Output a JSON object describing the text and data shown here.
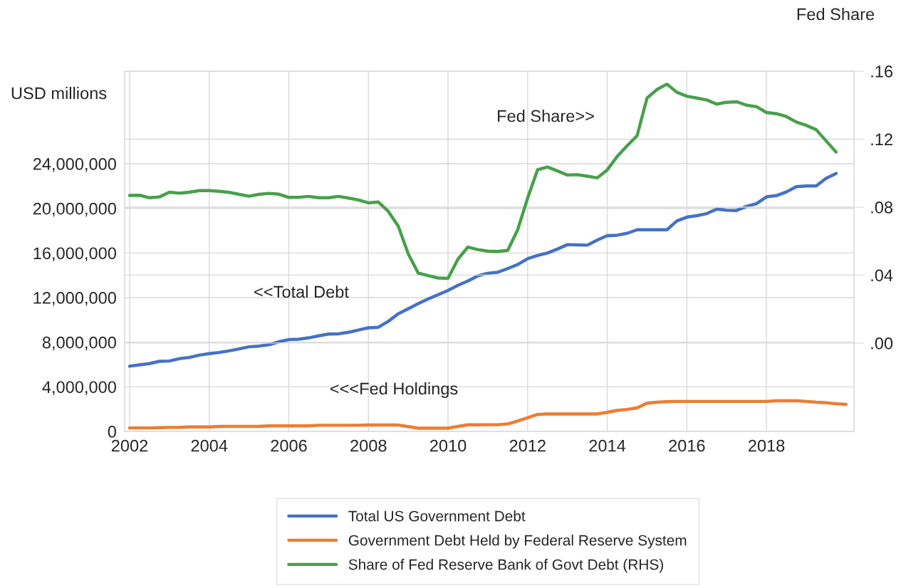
{
  "chart_data": {
    "type": "line",
    "ylabel": "USD millions",
    "y2label": "Fed Share",
    "x": [
      2002,
      2002.25,
      2002.5,
      2002.75,
      2003,
      2003.25,
      2003.5,
      2003.75,
      2004,
      2004.25,
      2004.5,
      2004.75,
      2005,
      2005.25,
      2005.5,
      2005.75,
      2006,
      2006.25,
      2006.5,
      2006.75,
      2007,
      2007.25,
      2007.5,
      2007.75,
      2008,
      2008.25,
      2008.5,
      2008.75,
      2009,
      2009.25,
      2009.5,
      2009.75,
      2010,
      2010.25,
      2010.5,
      2010.75,
      2011,
      2011.25,
      2011.5,
      2011.75,
      2012,
      2012.25,
      2012.5,
      2012.75,
      2013,
      2013.25,
      2013.5,
      2013.75,
      2014,
      2014.25,
      2014.5,
      2014.75,
      2015,
      2015.25,
      2015.5,
      2015.75,
      2016,
      2016.25,
      2016.5,
      2016.75,
      2017,
      2017.25,
      2017.5,
      2017.75,
      2018,
      2018.25,
      2018.5,
      2018.75,
      2019,
      2019.25,
      2019.5,
      2019.75,
      2020
    ],
    "series": [
      {
        "name": "Total US Government Debt",
        "color": "#4472c4",
        "values": [
          5850000,
          5970000,
          6080000,
          6290000,
          6310000,
          6520000,
          6630000,
          6840000,
          6970000,
          7080000,
          7220000,
          7400000,
          7590000,
          7650000,
          7770000,
          8040000,
          8230000,
          8270000,
          8390000,
          8570000,
          8730000,
          8750000,
          8890000,
          9090000,
          9290000,
          9340000,
          9870000,
          10550000,
          11000000,
          11460000,
          11870000,
          12260000,
          12640000,
          13100000,
          13490000,
          13950000,
          14180000,
          14270000,
          14600000,
          14960000,
          15490000,
          15770000,
          16000000,
          16350000,
          16750000,
          16730000,
          16700000,
          17150000,
          17550000,
          17590000,
          17760000,
          18080000,
          18080000,
          18080000,
          18080000,
          18870000,
          19210000,
          19340000,
          19530000,
          19930000,
          19830000,
          19810000,
          20180000,
          20420000,
          21030000,
          21140000,
          21470000,
          21940000,
          22010000,
          22010000,
          22700000,
          23130000,
          null
        ]
      },
      {
        "name": "Government Debt Held by Federal Reserve System",
        "color": "#ed7d31",
        "values": [
          310000,
          310000,
          310000,
          330000,
          360000,
          360000,
          400000,
          400000,
          400000,
          450000,
          450000,
          450000,
          450000,
          450000,
          500000,
          500000,
          500000,
          500000,
          500000,
          550000,
          550000,
          550000,
          550000,
          550000,
          580000,
          580000,
          580000,
          570000,
          430000,
          290000,
          290000,
          290000,
          290000,
          450000,
          590000,
          590000,
          600000,
          600000,
          670000,
          940000,
          1220000,
          1520000,
          1570000,
          1570000,
          1570000,
          1570000,
          1570000,
          1570000,
          1710000,
          1880000,
          1970000,
          2110000,
          2530000,
          2620000,
          2670000,
          2690000,
          2690000,
          2690000,
          2690000,
          2690000,
          2690000,
          2690000,
          2690000,
          2690000,
          2690000,
          2740000,
          2740000,
          2740000,
          2690000,
          2620000,
          2570000,
          2480000,
          2430000
        ]
      },
      {
        "name": "Share of Fed Reserve Bank of Govt Debt (RHS)",
        "color": "#47a04b",
        "axis": "y2",
        "values": [
          0.0869,
          0.087,
          0.0855,
          0.086,
          0.0888,
          0.0882,
          0.0888,
          0.0897,
          0.0897,
          0.0893,
          0.0887,
          0.0875,
          0.0864,
          0.0875,
          0.0881,
          0.0876,
          0.0857,
          0.0858,
          0.0863,
          0.0855,
          0.0855,
          0.0863,
          0.0853,
          0.0842,
          0.0825,
          0.083,
          0.0775,
          0.0688,
          0.0525,
          0.0412,
          0.0397,
          0.0383,
          0.0381,
          0.0494,
          0.0565,
          0.055,
          0.0541,
          0.0539,
          0.0545,
          0.0667,
          0.0853,
          0.102,
          0.1036,
          0.1013,
          0.0989,
          0.0991,
          0.0982,
          0.0972,
          0.1019,
          0.1098,
          0.1161,
          0.122,
          0.1442,
          0.1492,
          0.1524,
          0.1476,
          0.1453,
          0.1442,
          0.1431,
          0.1406,
          0.1417,
          0.142,
          0.14,
          0.1391,
          0.1357,
          0.135,
          0.1333,
          0.1301,
          0.1281,
          0.1256,
          0.119,
          0.1124,
          null
        ]
      }
    ],
    "xlim": [
      2001.875,
      2020.2
    ],
    "xticks": [
      2002,
      2004,
      2006,
      2008,
      2010,
      2012,
      2014,
      2016,
      2018
    ],
    "ylim": [
      0,
      32300000
    ],
    "yticks": [
      {
        "value": 0,
        "label": "0"
      },
      {
        "value": 4000000,
        "label": "4,000,000"
      },
      {
        "value": 8000000,
        "label": "8,000,000"
      },
      {
        "value": 12000000,
        "label": "12,000,000"
      },
      {
        "value": 16000000,
        "label": "16,000,000"
      },
      {
        "value": 20000000,
        "label": "20,000,000"
      },
      {
        "value": 24000000,
        "label": "24,000,000"
      }
    ],
    "y2lim": [
      -0.052,
      0.16
    ],
    "y2ticks": [
      {
        "value": 0,
        "label": ".00"
      },
      {
        "value": 0.04,
        "label": ".04"
      },
      {
        "value": 0.08,
        "label": ".08"
      },
      {
        "value": 0.12,
        "label": ".12"
      },
      {
        "value": 0.16,
        "label": ".16"
      }
    ],
    "annotations": [
      "Fed Share>>",
      "<<Total Debt",
      "<<<Fed Holdings"
    ],
    "grid": true,
    "legend": "bottom",
    "marker": "none",
    "line_style": "solid"
  }
}
